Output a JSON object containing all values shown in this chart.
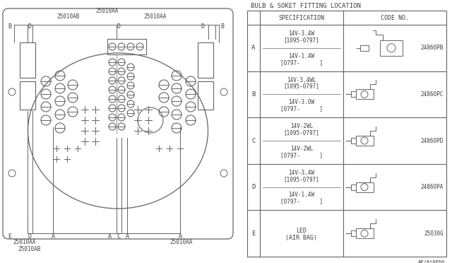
{
  "title": "BULB & SOKET FITTING LOCATION",
  "bg_color": "#ffffff",
  "line_color": "#646464",
  "text_color": "#404040",
  "table": {
    "rows": [
      {
        "row_label": "A",
        "spec_upper1": "14V-3.4W",
        "spec_upper2": "[1095-0797]",
        "spec_lower1": "14V-1.4W",
        "spec_lower2": "[0797-      ]",
        "code": "24860PB",
        "connector_type": "large"
      },
      {
        "row_label": "B",
        "spec_upper1": "14V-3.4WL",
        "spec_upper2": "[1095-0797]",
        "spec_lower1": "14V-3.0W",
        "spec_lower2": "[0797-      ]",
        "code": "24860PC",
        "connector_type": "small"
      },
      {
        "row_label": "C",
        "spec_upper1": "14V-2WL",
        "spec_upper2": "[1095-0797]",
        "spec_lower1": "14V-2WL",
        "spec_lower2": "[0797-      ]",
        "code": "24860PD",
        "connector_type": "small"
      },
      {
        "row_label": "D",
        "spec_upper1": "14V-3.4W",
        "spec_upper2": "[1095-0797]",
        "spec_lower1": "14V-1.4W",
        "spec_lower2": "[0797-      ]",
        "code": "24860PA",
        "connector_type": "small"
      },
      {
        "row_label": "E",
        "spec_upper1": "LED",
        "spec_upper2": "(AIR BAG)",
        "spec_lower1": "",
        "spec_lower2": "",
        "code": "25030G",
        "connector_type": "small"
      }
    ]
  },
  "part_number": "AP/8*0P66",
  "font_family": "monospace"
}
